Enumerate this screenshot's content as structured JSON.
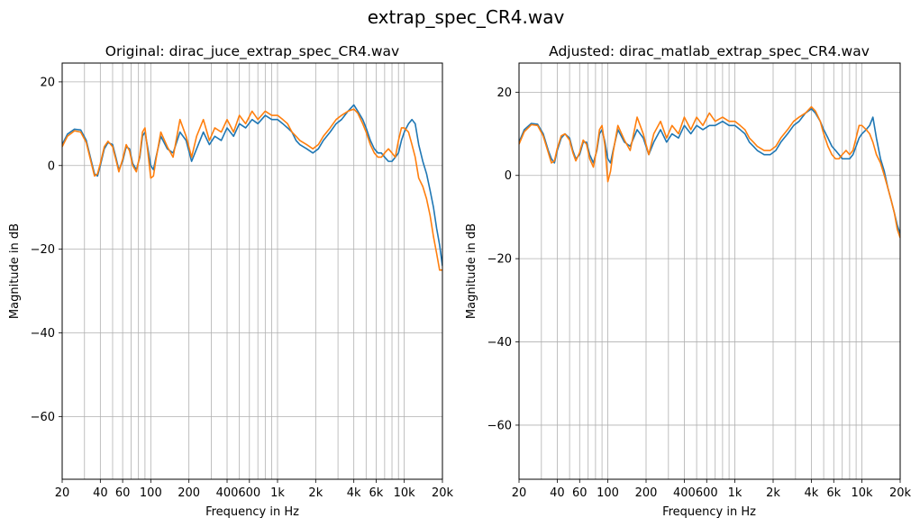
{
  "figure": {
    "title": "extrap_spec_CR4.wav"
  },
  "colors": {
    "series_1": "#1f77b4",
    "series_2": "#ff7f0e",
    "grid": "#b0b0b0",
    "axes": "#000000"
  },
  "chart_data": [
    {
      "type": "line",
      "title": "Original: dirac_juce_extrap_spec_CR4.wav",
      "xlabel": "Frequency in Hz",
      "ylabel": "Magnitude in dB",
      "xscale": "log",
      "xlim": [
        20,
        20000
      ],
      "ylim": [
        -75,
        24.5
      ],
      "grid": true,
      "xticks": [
        {
          "v": 20,
          "label": "20"
        },
        {
          "v": 40,
          "label": "40"
        },
        {
          "v": 60,
          "label": "60"
        },
        {
          "v": 100,
          "label": "100"
        },
        {
          "v": 200,
          "label": "200"
        },
        {
          "v": 400,
          "label": "400"
        },
        {
          "v": 600,
          "label": "600"
        },
        {
          "v": 1000,
          "label": "1k"
        },
        {
          "v": 2000,
          "label": "2k"
        },
        {
          "v": 4000,
          "label": "4k"
        },
        {
          "v": 6000,
          "label": "6k"
        },
        {
          "v": 10000,
          "label": "10k"
        },
        {
          "v": 20000,
          "label": "20k"
        }
      ],
      "xgrid": [
        30,
        40,
        50,
        60,
        70,
        80,
        90,
        100,
        200,
        300,
        400,
        500,
        600,
        700,
        800,
        900,
        1000,
        2000,
        3000,
        4000,
        5000,
        6000,
        7000,
        8000,
        9000,
        10000
      ],
      "yticks": [
        {
          "v": 20,
          "label": "20"
        },
        {
          "v": 0,
          "label": "0"
        },
        {
          "v": -20,
          "label": "−20"
        },
        {
          "v": -40,
          "label": "−40"
        },
        {
          "v": -60,
          "label": "−60"
        }
      ],
      "series": [
        {
          "color": "#1f77b4",
          "x": [
            20,
            22,
            25,
            28,
            31,
            34,
            36,
            38,
            40,
            43,
            46,
            50,
            53,
            56,
            60,
            64,
            68,
            72,
            77,
            82,
            86,
            90,
            95,
            100,
            105,
            110,
            120,
            135,
            150,
            170,
            190,
            210,
            230,
            260,
            290,
            320,
            360,
            400,
            450,
            500,
            560,
            630,
            700,
            800,
            900,
            1000,
            1100,
            1200,
            1300,
            1400,
            1500,
            1700,
            1900,
            2100,
            2300,
            2600,
            2900,
            3200,
            3600,
            4000,
            4300,
            4700,
            5000,
            5400,
            5800,
            6200,
            6600,
            7000,
            7500,
            8000,
            8500,
            9000,
            9500,
            10000,
            10800,
            11500,
            12200,
            13000,
            14000,
            15000,
            16000,
            17000,
            18000,
            19000,
            20000
          ],
          "y": [
            5,
            7.5,
            8.7,
            8.5,
            6,
            1,
            -2,
            -2.5,
            0,
            4,
            5.5,
            5,
            2,
            -1,
            1,
            4.5,
            4,
            0.5,
            -1,
            2,
            7,
            8,
            4,
            0,
            -1,
            2,
            7,
            4,
            3,
            8,
            6,
            1,
            4,
            8,
            5,
            7,
            6,
            9,
            7,
            10,
            9,
            11,
            10,
            12,
            11,
            11,
            10,
            9,
            8,
            6,
            5,
            4,
            3,
            4,
            6,
            8,
            10,
            11,
            13,
            14.5,
            13,
            11,
            9,
            6,
            4,
            3,
            3,
            2,
            1,
            1,
            2,
            3,
            6,
            8,
            10,
            11,
            10,
            5,
            1,
            -2,
            -6,
            -10,
            -15,
            -19,
            -24
          ]
        },
        {
          "color": "#ff7f0e",
          "x": [
            20,
            22,
            25,
            28,
            31,
            34,
            36,
            38,
            40,
            43,
            46,
            50,
            53,
            56,
            60,
            64,
            68,
            72,
            77,
            82,
            86,
            90,
            95,
            100,
            105,
            110,
            120,
            135,
            150,
            170,
            190,
            210,
            230,
            260,
            290,
            320,
            360,
            400,
            450,
            500,
            560,
            630,
            700,
            800,
            900,
            1000,
            1100,
            1200,
            1300,
            1400,
            1500,
            1700,
            1900,
            2100,
            2300,
            2600,
            2900,
            3200,
            3600,
            4000,
            4300,
            4700,
            5000,
            5400,
            5800,
            6200,
            6600,
            7000,
            7500,
            8000,
            8500,
            9000,
            9500,
            10000,
            10800,
            11500,
            12200,
            13000,
            14000,
            15000,
            16000,
            17000,
            18000,
            19000,
            20000
          ],
          "y": [
            4.5,
            7,
            8.3,
            8,
            5.5,
            0.5,
            -2.5,
            -2,
            0.5,
            4.5,
            5.8,
            4.5,
            1.5,
            -1.5,
            1.5,
            5,
            3.5,
            0,
            -1.5,
            2.5,
            8,
            9,
            3,
            -3,
            -2.5,
            1.5,
            8,
            4.5,
            2,
            11,
            7,
            2,
            7,
            11,
            6,
            9,
            8,
            11,
            8,
            12,
            10,
            13,
            11,
            13,
            12,
            12,
            11,
            10,
            8,
            7,
            6,
            5,
            4,
            5,
            7,
            9,
            11,
            12,
            13,
            13.5,
            12.5,
            10,
            8,
            5,
            3,
            2,
            2,
            3,
            4,
            3,
            2,
            6,
            9,
            9,
            8,
            5,
            2,
            -3,
            -5,
            -8,
            -12,
            -17,
            -21,
            -25,
            -25
          ]
        }
      ]
    },
    {
      "type": "line",
      "title": "Adjusted: dirac_matlab_extrap_spec_CR4.wav",
      "xlabel": "Frequency in Hz",
      "ylabel": "Magnitude in dB",
      "xscale": "log",
      "xlim": [
        20,
        20000
      ],
      "ylim": [
        -73,
        27
      ],
      "grid": true,
      "xticks": [
        {
          "v": 20,
          "label": "20"
        },
        {
          "v": 40,
          "label": "40"
        },
        {
          "v": 60,
          "label": "60"
        },
        {
          "v": 100,
          "label": "100"
        },
        {
          "v": 200,
          "label": "200"
        },
        {
          "v": 400,
          "label": "400"
        },
        {
          "v": 600,
          "label": "600"
        },
        {
          "v": 1000,
          "label": "1k"
        },
        {
          "v": 2000,
          "label": "2k"
        },
        {
          "v": 4000,
          "label": "4k"
        },
        {
          "v": 6000,
          "label": "6k"
        },
        {
          "v": 10000,
          "label": "10k"
        },
        {
          "v": 20000,
          "label": "20k"
        }
      ],
      "xgrid": [
        30,
        40,
        50,
        60,
        70,
        80,
        90,
        100,
        200,
        300,
        400,
        500,
        600,
        700,
        800,
        900,
        1000,
        2000,
        3000,
        4000,
        5000,
        6000,
        7000,
        8000,
        9000,
        10000
      ],
      "yticks": [
        {
          "v": 20,
          "label": "20"
        },
        {
          "v": 0,
          "label": "0"
        },
        {
          "v": -20,
          "label": "−20"
        },
        {
          "v": -40,
          "label": "−40"
        },
        {
          "v": -60,
          "label": "−60"
        }
      ],
      "series": [
        {
          "color": "#1f77b4",
          "x": [
            20,
            22,
            25,
            28,
            31,
            34,
            36,
            38,
            40,
            43,
            46,
            50,
            53,
            56,
            60,
            64,
            68,
            72,
            77,
            82,
            86,
            90,
            95,
            100,
            105,
            110,
            120,
            135,
            150,
            170,
            190,
            210,
            230,
            260,
            290,
            320,
            360,
            400,
            450,
            500,
            560,
            630,
            700,
            800,
            900,
            1000,
            1100,
            1200,
            1300,
            1400,
            1500,
            1700,
            1900,
            2100,
            2300,
            2600,
            2900,
            3200,
            3600,
            4000,
            4300,
            4700,
            5000,
            5400,
            5800,
            6200,
            6600,
            7000,
            7500,
            8000,
            8500,
            9000,
            9500,
            10000,
            10800,
            11500,
            12200,
            13000,
            14000,
            15000,
            16000,
            17000,
            18000,
            19000,
            20000
          ],
          "y": [
            8,
            11,
            12.5,
            12.3,
            10,
            6,
            4,
            3,
            6,
            9,
            10,
            9,
            6,
            4,
            5,
            8,
            8,
            5,
            3,
            6,
            10,
            11,
            8,
            4,
            3,
            6,
            11,
            8,
            7,
            11,
            9,
            5,
            8,
            11,
            8,
            10,
            9,
            12,
            10,
            12,
            11,
            12,
            12,
            13,
            12,
            12,
            11,
            10,
            8,
            7,
            6,
            5,
            5,
            6,
            8,
            10,
            12,
            13,
            15,
            16,
            15,
            13,
            11,
            9,
            7,
            6,
            5,
            4,
            4,
            4,
            5,
            7,
            9,
            10,
            11,
            12,
            14,
            9,
            4,
            1,
            -3,
            -6,
            -9,
            -12,
            -14
          ]
        },
        {
          "color": "#ff7f0e",
          "x": [
            20,
            22,
            25,
            28,
            31,
            34,
            36,
            38,
            40,
            43,
            46,
            50,
            53,
            56,
            60,
            64,
            68,
            72,
            77,
            82,
            86,
            90,
            95,
            100,
            105,
            110,
            120,
            135,
            150,
            170,
            190,
            210,
            230,
            260,
            290,
            320,
            360,
            400,
            450,
            500,
            560,
            630,
            700,
            800,
            900,
            1000,
            1100,
            1200,
            1300,
            1400,
            1500,
            1700,
            1900,
            2100,
            2300,
            2600,
            2900,
            3200,
            3600,
            4000,
            4300,
            4700,
            5000,
            5400,
            5800,
            6200,
            6600,
            7000,
            7500,
            8000,
            8500,
            9000,
            9500,
            10000,
            10800,
            11500,
            12200,
            13000,
            14000,
            15000,
            16000,
            17000,
            18000,
            19000,
            20000
          ],
          "y": [
            7.5,
            10.5,
            12.2,
            12,
            9.5,
            5.5,
            3,
            3.5,
            6.5,
            9.5,
            10,
            8.5,
            5.5,
            3.5,
            5.5,
            8.5,
            7.5,
            4,
            2,
            6.5,
            11,
            12,
            7,
            -1.5,
            1,
            5.5,
            12,
            8.5,
            6,
            14,
            10,
            5,
            10,
            13,
            9,
            12,
            10,
            14,
            11,
            14,
            12,
            15,
            13,
            14,
            13,
            13,
            12,
            11,
            9,
            8,
            7,
            6,
            6,
            7,
            9,
            11,
            13,
            14,
            15,
            16.5,
            15.5,
            13,
            10,
            7,
            5,
            4,
            4,
            5,
            6,
            5,
            6,
            9,
            12,
            12,
            11,
            10,
            8,
            5,
            3,
            0,
            -3,
            -6,
            -9,
            -13,
            -15
          ]
        }
      ]
    }
  ]
}
